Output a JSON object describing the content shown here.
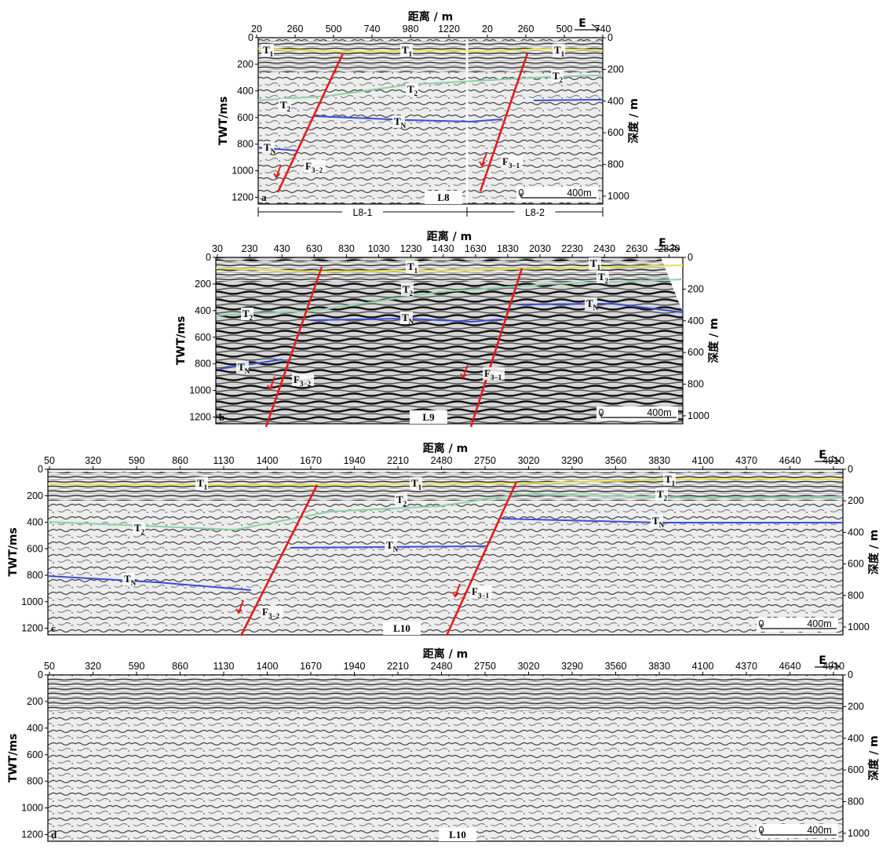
{
  "colors": {
    "T1": "#e8e14a",
    "T2": "#8fd1a8",
    "TN": "#3a4fd6",
    "fault": "#e21c1c",
    "axis": "#000000"
  },
  "panels": [
    {
      "id": "a",
      "line_label": "L8",
      "x_title": "距离 / m",
      "y_left_title": "TWT/ms",
      "y_right_title": "深度 / m",
      "x_ticks": [
        "20",
        "260",
        "500",
        "740",
        "980",
        "1220",
        "20",
        "260",
        "500",
        "740"
      ],
      "y_left_ticks": [
        "0",
        "200",
        "400",
        "600",
        "800",
        "1000",
        "1200"
      ],
      "y_right_ticks": [
        "0",
        "200",
        "400",
        "600",
        "800",
        "1000"
      ],
      "north_label": "E",
      "scale_label": "400m",
      "scale_zero": "0",
      "segments": [
        "L8-1",
        "L8-2"
      ],
      "horizons": [
        {
          "base": "T",
          "sub": "1"
        },
        {
          "base": "T",
          "sub": "1"
        },
        {
          "base": "T",
          "sub": "1"
        },
        {
          "base": "T",
          "sub": "2"
        },
        {
          "base": "T",
          "sub": "2"
        },
        {
          "base": "T",
          "sub": "2"
        },
        {
          "base": "T",
          "sub": "N"
        },
        {
          "base": "T",
          "sub": "N"
        }
      ],
      "faults": [
        {
          "base": "F",
          "sub": "3−2"
        },
        {
          "base": "F",
          "sub": "3−1"
        }
      ]
    },
    {
      "id": "b",
      "line_label": "L9",
      "x_title": "距离 / m",
      "y_left_title": "TWT/ms",
      "y_right_title": "深度 / m",
      "x_ticks": [
        "30",
        "230",
        "430",
        "630",
        "830",
        "1030",
        "1230",
        "1430",
        "1630",
        "1830",
        "2030",
        "2230",
        "2430",
        "2630",
        "2830"
      ],
      "y_left_ticks": [
        "0",
        "200",
        "400",
        "600",
        "800",
        "1000",
        "1200"
      ],
      "y_right_ticks": [
        "0",
        "200",
        "400",
        "600",
        "800",
        "1000"
      ],
      "north_label": "E",
      "scale_label": "400m",
      "scale_zero": "0",
      "horizons": [
        {
          "base": "T",
          "sub": "1"
        },
        {
          "base": "T",
          "sub": "1"
        },
        {
          "base": "T",
          "sub": "2"
        },
        {
          "base": "T",
          "sub": "2"
        },
        {
          "base": "T",
          "sub": "2"
        },
        {
          "base": "T",
          "sub": "N"
        },
        {
          "base": "T",
          "sub": "N"
        },
        {
          "base": "T",
          "sub": "N"
        }
      ],
      "faults": [
        {
          "base": "F",
          "sub": "3−2"
        },
        {
          "base": "F",
          "sub": "3−1"
        }
      ]
    },
    {
      "id": "c",
      "line_label": "L10",
      "x_title": "距离 / m",
      "y_left_title": "TWT/ms",
      "y_right_title": "深度 / m",
      "x_ticks": [
        "50",
        "320",
        "590",
        "860",
        "1130",
        "1400",
        "1670",
        "1940",
        "2210",
        "2480",
        "2750",
        "3020",
        "3290",
        "3560",
        "3830",
        "4100",
        "4370",
        "4640",
        "4910"
      ],
      "y_left_ticks": [
        "0",
        "200",
        "400",
        "600",
        "800",
        "1000",
        "1200"
      ],
      "y_right_ticks": [
        "0",
        "200",
        "400",
        "600",
        "800",
        "1000"
      ],
      "north_label": "E",
      "scale_label": "400m",
      "scale_zero": "0",
      "horizons": [
        {
          "base": "T",
          "sub": "1"
        },
        {
          "base": "T",
          "sub": "1"
        },
        {
          "base": "T",
          "sub": "1"
        },
        {
          "base": "T",
          "sub": "2"
        },
        {
          "base": "T",
          "sub": "2"
        },
        {
          "base": "T",
          "sub": "2"
        },
        {
          "base": "T",
          "sub": "N"
        },
        {
          "base": "T",
          "sub": "N"
        },
        {
          "base": "T",
          "sub": "N"
        }
      ],
      "faults": [
        {
          "base": "F",
          "sub": "3−2"
        },
        {
          "base": "F",
          "sub": "3−1"
        }
      ]
    },
    {
      "id": "d",
      "line_label": "L10",
      "x_title": "距离 / m",
      "y_left_title": "TWT/ms",
      "y_right_title": "深度 / m",
      "x_ticks": [
        "50",
        "320",
        "590",
        "860",
        "1130",
        "1400",
        "1670",
        "1940",
        "2210",
        "2480",
        "2750",
        "3020",
        "3290",
        "3560",
        "3830",
        "4100",
        "4370",
        "4640",
        "4910"
      ],
      "y_left_ticks": [
        "0",
        "200",
        "400",
        "600",
        "800",
        "1000",
        "1200"
      ],
      "y_right_ticks": [
        "0",
        "200",
        "400",
        "600",
        "800",
        "1000"
      ],
      "north_label": "E",
      "scale_label": "400m",
      "scale_zero": "0",
      "horizons": [],
      "faults": []
    }
  ]
}
